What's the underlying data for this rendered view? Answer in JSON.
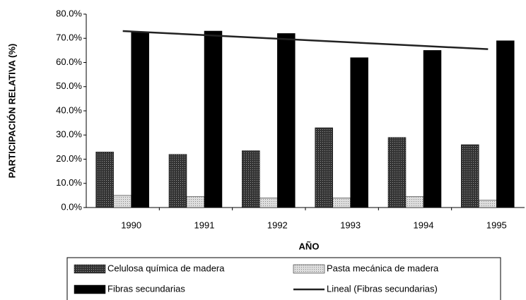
{
  "chart_data": {
    "type": "bar",
    "x_label": "AÑO",
    "y_label": "PARTICIPACIÓN RELATIVA (%)",
    "categories": [
      "1990",
      "1991",
      "1992",
      "1993",
      "1994",
      "1995"
    ],
    "series": [
      {
        "name": "Celulosa química de madera",
        "color": "#555555",
        "values": [
          23,
          22,
          23.5,
          33,
          29,
          26
        ]
      },
      {
        "name": "Pasta mecánica de madera",
        "color": "#cfcfcf",
        "values": [
          5,
          4.5,
          4,
          4,
          4.5,
          3
        ]
      },
      {
        "name": "Fibras secundarias",
        "color": "#000000",
        "values": [
          72.5,
          73,
          72,
          62,
          65,
          69
        ]
      },
      {
        "name": "Lineal (Fibras secundarias)",
        "type": "line",
        "color": "#222222",
        "values": [
          73,
          71.5,
          70,
          68.5,
          67,
          65.5
        ]
      }
    ],
    "ylim": [
      0,
      80
    ],
    "yticks": [
      {
        "value": 0,
        "label": "0.0%"
      },
      {
        "value": 10,
        "label": "10.0%"
      },
      {
        "value": 20,
        "label": "20.0%"
      },
      {
        "value": 30,
        "label": "30.0%"
      },
      {
        "value": 40,
        "label": "40.0%"
      },
      {
        "value": 50,
        "label": "50.0%"
      },
      {
        "value": 60,
        "label": "60.0%"
      },
      {
        "value": 70,
        "label": "70.0%"
      },
      {
        "value": 80,
        "label": "80.0%"
      }
    ],
    "grid": false
  }
}
